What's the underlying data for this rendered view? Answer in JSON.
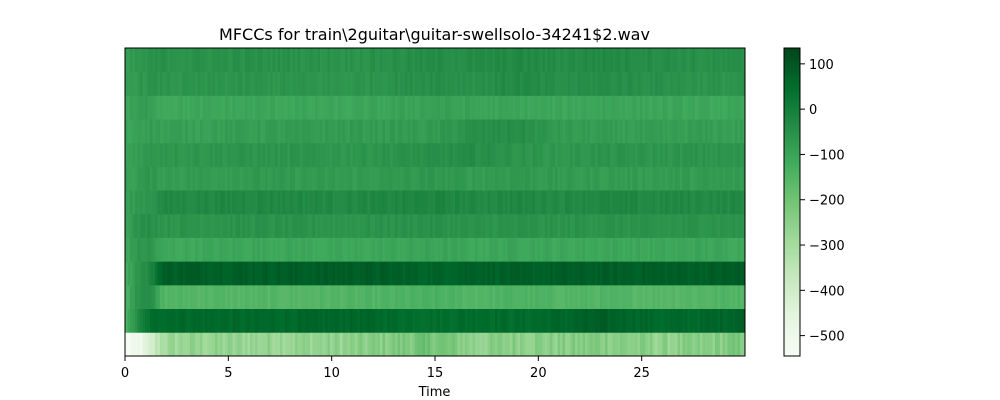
{
  "chart_data": {
    "type": "heatmap",
    "title": "MFCCs for train\\2guitar\\guitar-swellsolo-34241$2.wav",
    "xlabel": "Time",
    "ylabel": "",
    "xlim": [
      0,
      30
    ],
    "x_ticks": [
      "0",
      "5",
      "10",
      "15",
      "20",
      "25"
    ],
    "x_tick_values": [
      0,
      5,
      10,
      15,
      20,
      25
    ],
    "n_coefficients": 13,
    "colormap": [
      "#f7fcf5",
      "#e5f5e0",
      "#c7e9c0",
      "#a1d99b",
      "#74c476",
      "#41ab5d",
      "#238b45",
      "#006d2c",
      "#00441b"
    ],
    "colorbar": {
      "range": [
        -545,
        135
      ],
      "ticks": [
        "100",
        "0",
        "−100",
        "−200",
        "−300",
        "−400",
        "−500"
      ],
      "tick_values": [
        100,
        0,
        -100,
        -200,
        -300,
        -400,
        -500
      ]
    },
    "coefficient_profile": {
      "description_rows_bottom_to_top": "row 0 is the lowest band",
      "time_segments": [
        0,
        0.6,
        1.2,
        1.8,
        3,
        6,
        11,
        15,
        17,
        19,
        21,
        23,
        26,
        28,
        30
      ],
      "rows": [
        [
          -545,
          -520,
          -440,
          -300,
          -270,
          -270,
          -260,
          -200,
          -260,
          -240,
          -250,
          -230,
          -260,
          -250,
          -220
        ],
        [
          -150,
          -40,
          40,
          60,
          60,
          55,
          65,
          45,
          55,
          50,
          60,
          80,
          55,
          60,
          80
        ],
        [
          -150,
          -50,
          -30,
          -150,
          -150,
          -155,
          -150,
          -140,
          -150,
          -140,
          -150,
          -150,
          -155,
          -150,
          -145
        ],
        [
          -130,
          -60,
          -30,
          80,
          85,
          80,
          85,
          70,
          80,
          75,
          80,
          80,
          80,
          80,
          85
        ],
        [
          -110,
          -70,
          -60,
          -110,
          -110,
          -105,
          -110,
          -100,
          -110,
          -100,
          -110,
          -105,
          -110,
          -105,
          -110
        ],
        [
          -90,
          -60,
          -40,
          -60,
          -60,
          -55,
          -60,
          -50,
          -60,
          -55,
          -60,
          -55,
          -60,
          -55,
          -60
        ],
        [
          -100,
          -70,
          -60,
          -30,
          -30,
          -25,
          -30,
          -20,
          -30,
          -25,
          -30,
          -25,
          -30,
          -30,
          -30
        ],
        [
          -100,
          -80,
          -70,
          -80,
          -80,
          -75,
          -80,
          -70,
          -80,
          -70,
          -80,
          -80,
          -80,
          -80,
          -80
        ],
        [
          -100,
          -80,
          -70,
          -60,
          -65,
          -60,
          -65,
          -50,
          -40,
          -60,
          -70,
          -60,
          -65,
          -60,
          -65
        ],
        [
          -110,
          -90,
          -80,
          -90,
          -90,
          -85,
          -80,
          -80,
          -50,
          -40,
          -80,
          -85,
          -90,
          -85,
          -90
        ],
        [
          -110,
          -90,
          -80,
          -110,
          -110,
          -105,
          -110,
          -90,
          -100,
          -105,
          -110,
          -100,
          -105,
          -110,
          -110
        ],
        [
          -90,
          -70,
          -60,
          -60,
          -65,
          -60,
          -65,
          -40,
          -50,
          -30,
          -50,
          -40,
          -50,
          -60,
          -60
        ],
        [
          -90,
          -70,
          -60,
          -50,
          -55,
          -50,
          -55,
          -40,
          -40,
          -30,
          -40,
          -30,
          -40,
          -50,
          -50
        ]
      ]
    }
  }
}
